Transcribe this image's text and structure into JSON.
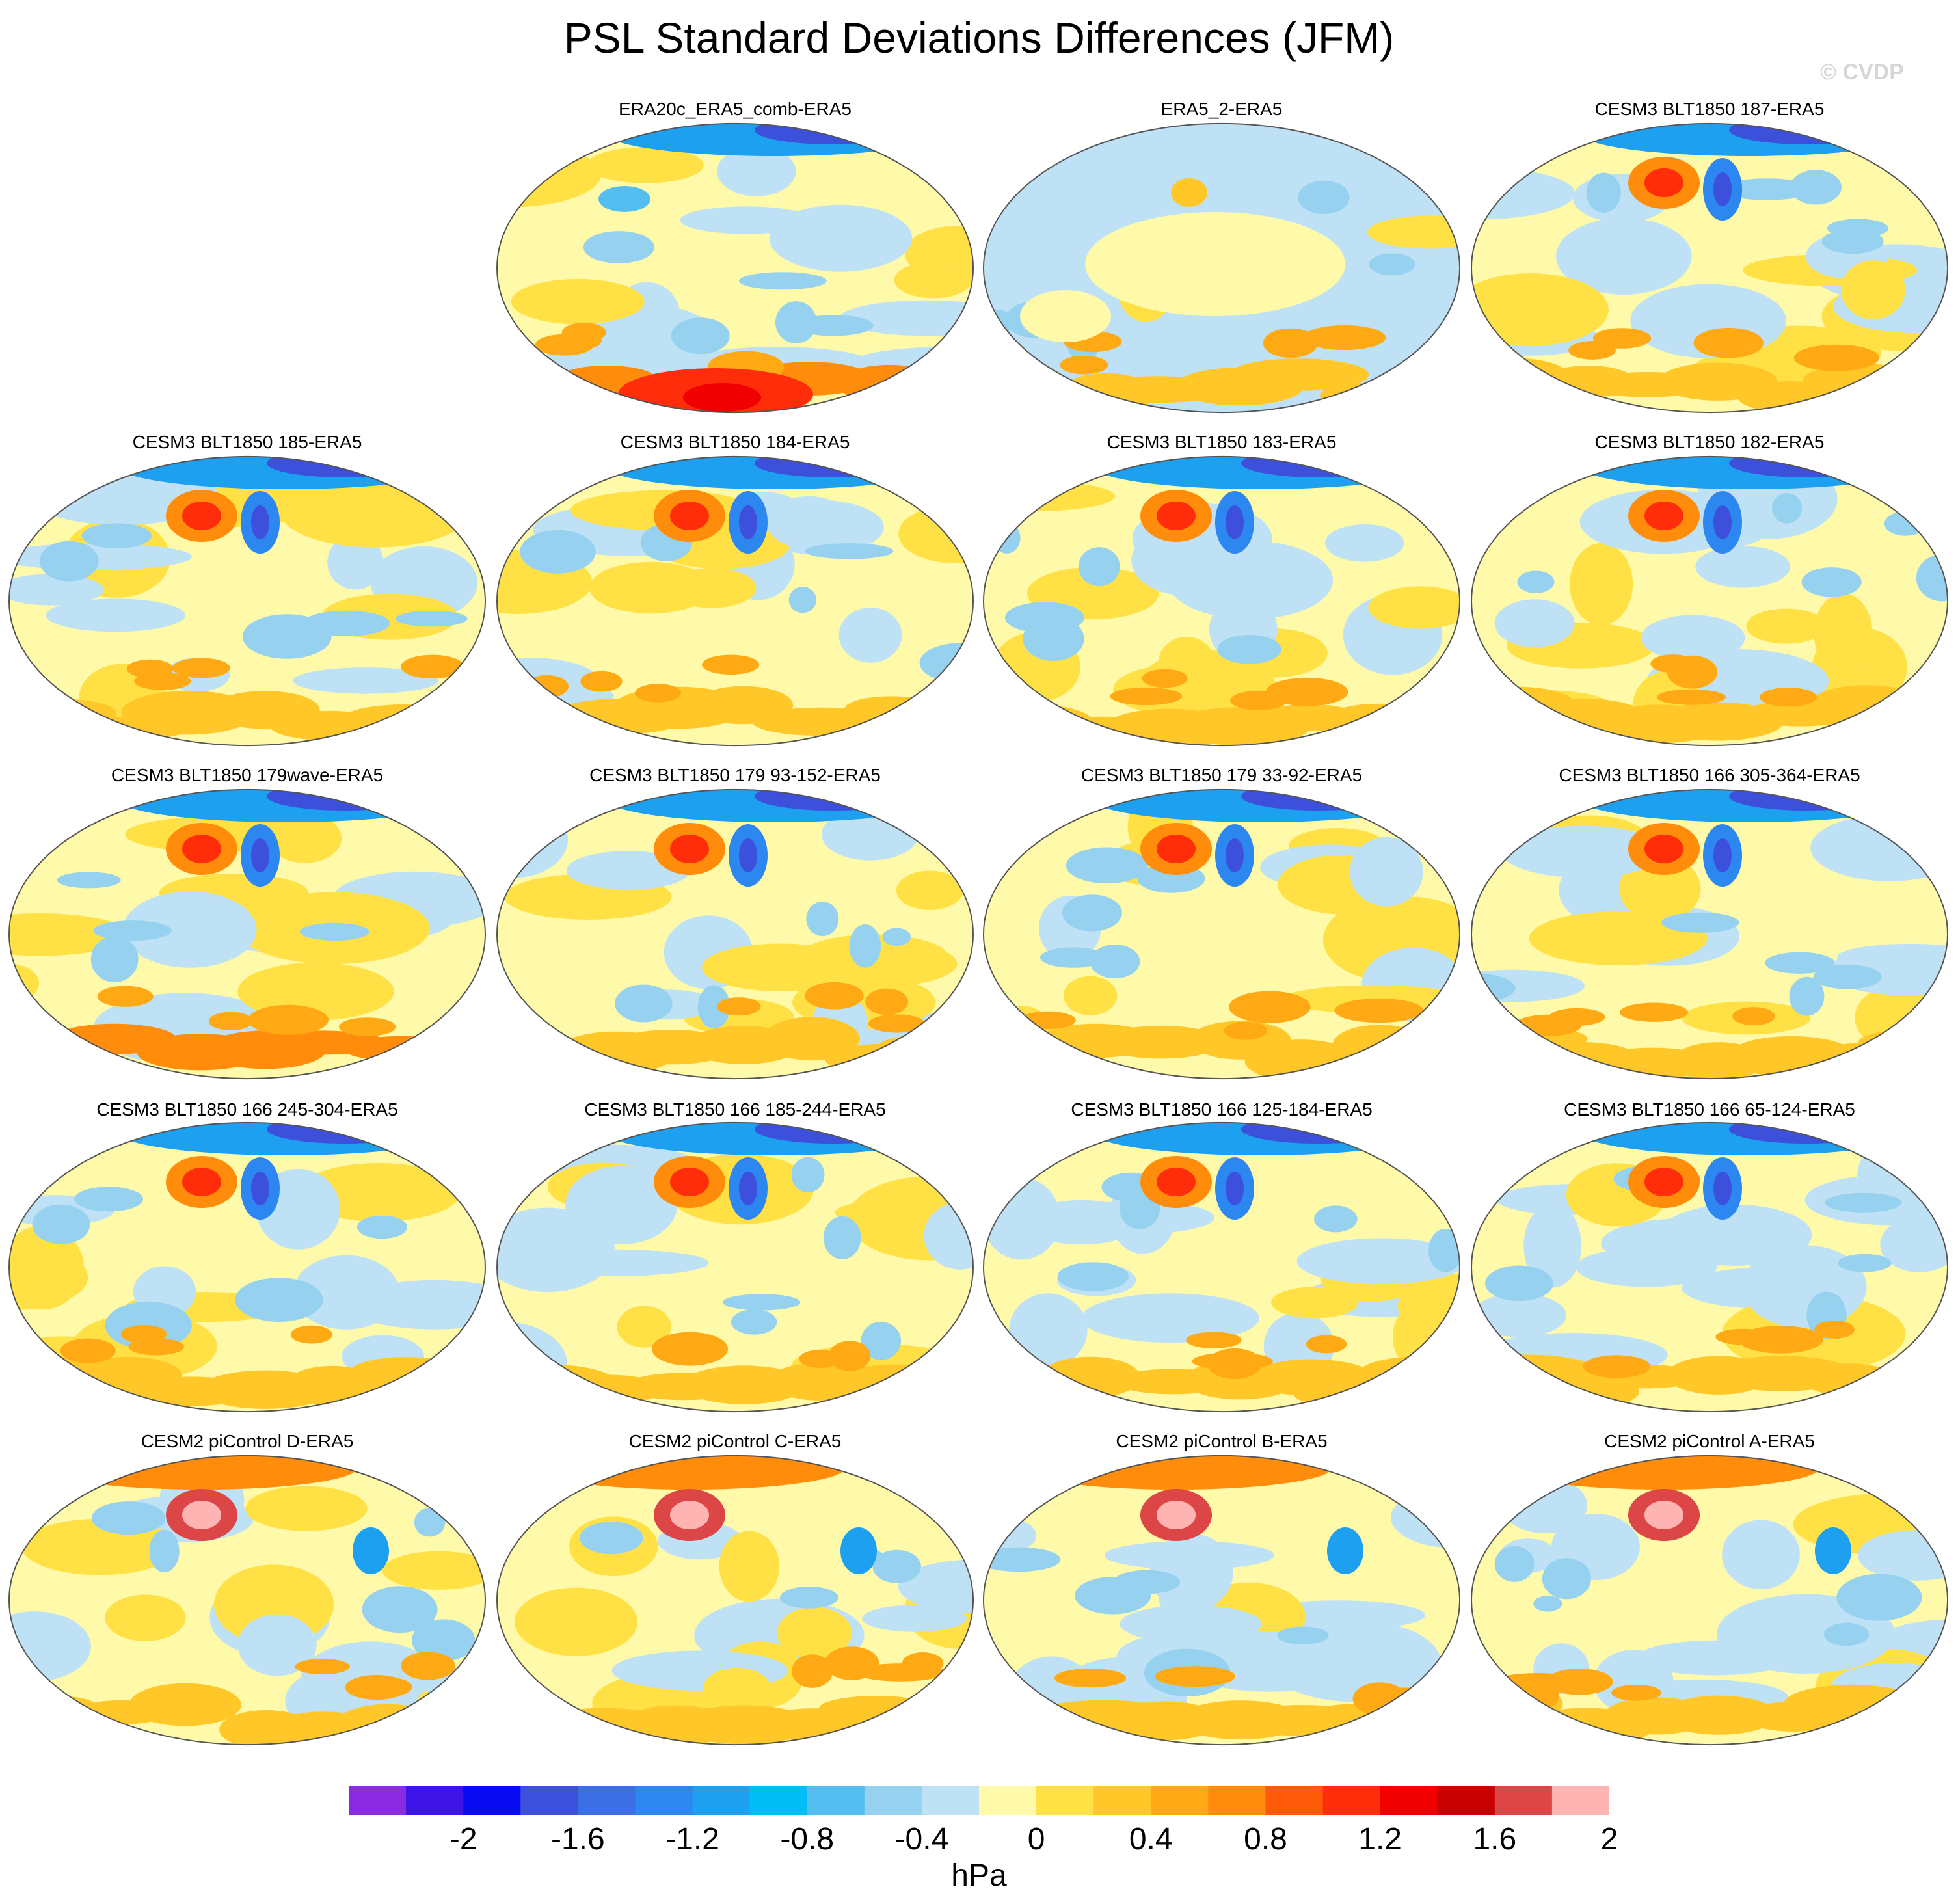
{
  "title": "PSL Standard Deviations Differences (JFM)",
  "watermark": "© CVDP",
  "panels": [
    {
      "title": "ERA20c_ERA5_comb-ERA5"
    },
    {
      "title": "ERA5_2-ERA5"
    },
    {
      "title": "CESM3 BLT1850 187-ERA5"
    },
    {
      "title": "CESM3 BLT1850 185-ERA5"
    },
    {
      "title": "CESM3 BLT1850 184-ERA5"
    },
    {
      "title": "CESM3 BLT1850 183-ERA5"
    },
    {
      "title": "CESM3 BLT1850 182-ERA5"
    },
    {
      "title": "CESM3 BLT1850 179wave-ERA5"
    },
    {
      "title": "CESM3 BLT1850 179 93-152-ERA5"
    },
    {
      "title": "CESM3 BLT1850 179 33-92-ERA5"
    },
    {
      "title": "CESM3 BLT1850 166 305-364-ERA5"
    },
    {
      "title": "CESM3 BLT1850 166 245-304-ERA5"
    },
    {
      "title": "CESM3 BLT1850 166 185-244-ERA5"
    },
    {
      "title": "CESM3 BLT1850 166 125-184-ERA5"
    },
    {
      "title": "CESM3 BLT1850 166 65-124-ERA5"
    },
    {
      "title": "CESM2 piControl D-ERA5"
    },
    {
      "title": "CESM2 piControl C-ERA5"
    },
    {
      "title": "CESM2 piControl B-ERA5"
    },
    {
      "title": "CESM2 piControl A-ERA5"
    }
  ],
  "colorbar": {
    "units": "hPa",
    "colors": [
      "#8a2be2",
      "#3c14e6",
      "#0a0af0",
      "#3c50dc",
      "#3c6ee6",
      "#2d87f0",
      "#1ea0f0",
      "#00bef5",
      "#55bef0",
      "#96d2f0",
      "#bee1f5",
      "#fffaaa",
      "#ffe146",
      "#ffc828",
      "#ffaa14",
      "#ff8c0a",
      "#ff5a0a",
      "#ff2d0a",
      "#f00000",
      "#c80000",
      "#dc4646",
      "#ffb4b4"
    ],
    "tick_labels": [
      "-2",
      "-1.6",
      "-1.2",
      "-0.8",
      "-0.4",
      "0",
      "0.4",
      "0.8",
      "1.2",
      "1.6",
      "2"
    ]
  }
}
